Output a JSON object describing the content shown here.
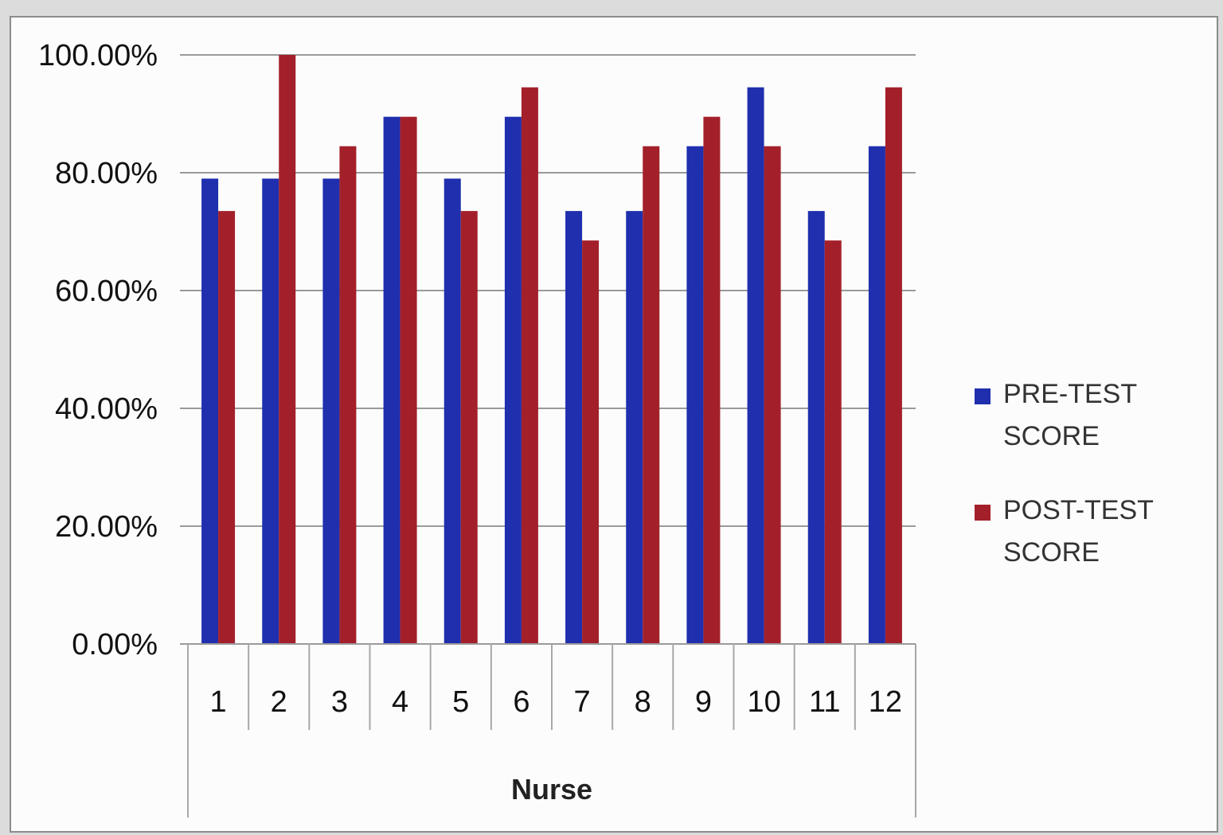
{
  "chart_data": {
    "type": "bar",
    "title": "",
    "xlabel": "Nurse",
    "ylabel": "",
    "ylim": [
      0,
      1
    ],
    "yticks": [
      "0.00%",
      "20.00%",
      "40.00%",
      "60.00%",
      "80.00%",
      "100.00%"
    ],
    "categories": [
      "1",
      "2",
      "3",
      "4",
      "5",
      "6",
      "7",
      "8",
      "9",
      "10",
      "11",
      "12"
    ],
    "series": [
      {
        "name": "PRE-TEST SCORE",
        "color": "#1f2fae",
        "values": [
          0.79,
          0.79,
          0.79,
          0.895,
          0.79,
          0.895,
          0.735,
          0.735,
          0.845,
          0.945,
          0.735,
          0.845
        ]
      },
      {
        "name": "POST-TEST SCORE",
        "color": "#a3202a",
        "values": [
          0.735,
          1.0,
          0.845,
          0.895,
          0.735,
          0.945,
          0.685,
          0.845,
          0.895,
          0.845,
          0.685,
          0.945
        ]
      }
    ],
    "grid": true,
    "legend": "right"
  }
}
